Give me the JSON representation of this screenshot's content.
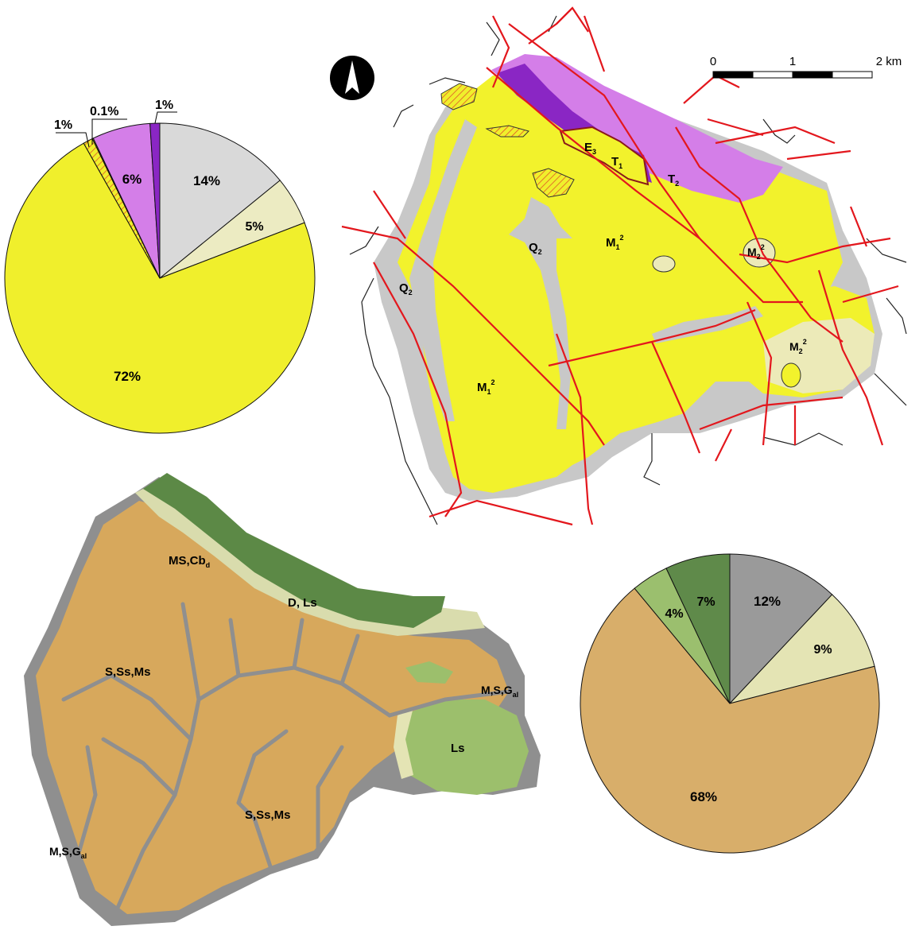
{
  "chart_data": [
    {
      "type": "pie",
      "title": "",
      "slices": [
        {
          "label": "14%",
          "value": 14,
          "color": "#d9d9d9"
        },
        {
          "label": "5%",
          "value": 5,
          "color": "#ecebc2"
        },
        {
          "label": "72%",
          "value": 72,
          "color": "#f0ef2c"
        },
        {
          "label": "1%",
          "value": 1,
          "color": "#f0ef2c",
          "hatched": true
        },
        {
          "label": "0.1%",
          "value": 0.1,
          "color": "#f0ef2c"
        },
        {
          "label": "6%",
          "value": 6,
          "color": "#d47ee8"
        },
        {
          "label": "1%",
          "value": 1,
          "color": "#8a26c4"
        }
      ]
    },
    {
      "type": "pie",
      "title": "",
      "slices": [
        {
          "label": "12%",
          "value": 12,
          "color": "#9a9a9a"
        },
        {
          "label": "9%",
          "value": 9,
          "color": "#e4e4b4"
        },
        {
          "label": "68%",
          "value": 68,
          "color": "#d8ae6a"
        },
        {
          "label": "4%",
          "value": 4,
          "color": "#9bbf6e"
        },
        {
          "label": "7%",
          "value": 7,
          "color": "#5f8a4a"
        }
      ]
    }
  ],
  "geology_map": {
    "north_arrow": "north-arrow-icon",
    "scale_bar": {
      "ticks": [
        "0",
        "1",
        "2 km"
      ]
    },
    "fault_color": "#e3171d",
    "labels": {
      "e": "E",
      "e_sub": "3",
      "t1": "T",
      "t1_sub": "1",
      "t2": "T",
      "t2_sub": "2",
      "q2a": "Q",
      "q2a_sub": "2",
      "q2b": "Q",
      "q2b_sub": "2",
      "m12a": "M",
      "m12a_sub": "1",
      "m12a_sup": "2",
      "m12b": "M",
      "m12b_sub": "1",
      "m12b_sup": "2",
      "m22a": "M",
      "m22a_sub": "2",
      "m22a_sup": "2",
      "m22b": "M",
      "m22b_sub": "2",
      "m22b_sup": "2"
    }
  },
  "lithology_map": {
    "labels": {
      "ms_cb": "MS,Cb",
      "ms_cb_sub": "d",
      "d_ls": "D, Ls",
      "s_ss_ms_1": "S,Ss,Ms",
      "s_ss_ms_2": "S,Ss,Ms",
      "msg_right": "M,S,G",
      "msg_right_sub": "al",
      "msg_left": "M,S,G",
      "msg_left_sub": "al",
      "ls": "Ls"
    }
  }
}
